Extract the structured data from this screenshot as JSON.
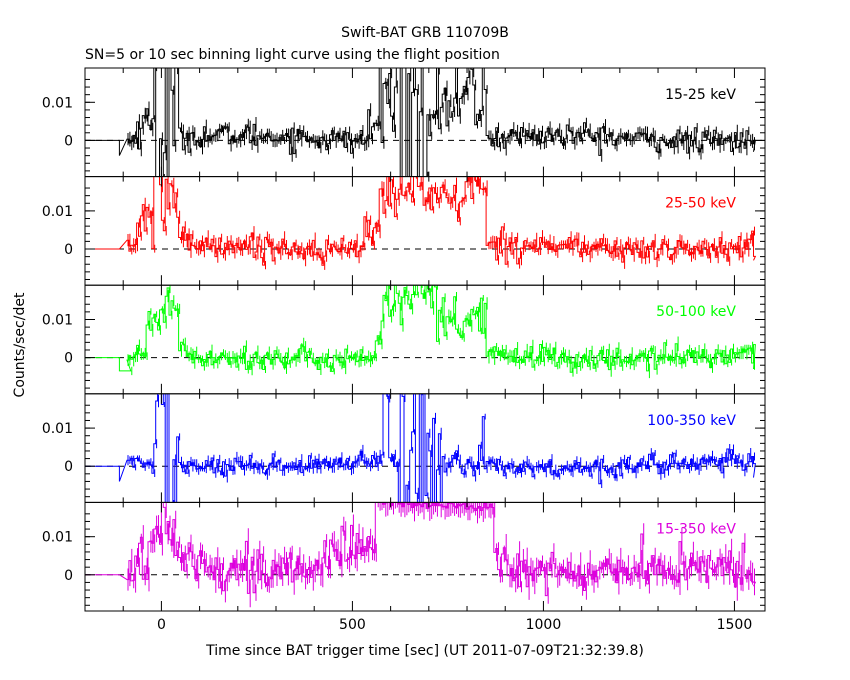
{
  "chart_data": {
    "type": "line",
    "title": "Swift-BAT GRB 110709B",
    "subtitle": "SN=5 or 10 sec binning light curve using the flight position",
    "xlabel": "Time since BAT trigger time [sec] (UT 2011-07-09T21:32:39.8)",
    "ylabel": "Counts/sec/det",
    "xlim": [
      -200,
      1580
    ],
    "ylim": [
      -0.0095,
      0.019
    ],
    "x_ticks": [
      0,
      500,
      1000,
      1500
    ],
    "x_tick_labels": [
      "0",
      "500",
      "1000",
      "1500"
    ],
    "y_ticks": [
      0,
      0.01
    ],
    "y_tick_labels": [
      "0",
      "0.01"
    ],
    "zero_line": "dashed",
    "grid": false,
    "panels": [
      {
        "name": "15-25 keV",
        "color": "#000000",
        "noise": 0.0016,
        "baseline": 0.0005,
        "episodes": [
          {
            "start": -70,
            "end": 0,
            "level": 0.0045,
            "noise": 0.003
          },
          {
            "start": -20,
            "end": 45,
            "level": 0.009,
            "noise": 0.02
          },
          {
            "start": 540,
            "end": 570,
            "level": 0.005,
            "noise": 0.003
          },
          {
            "start": 570,
            "end": 700,
            "level": 0.011,
            "noise": 0.02
          },
          {
            "start": 700,
            "end": 790,
            "level": 0.01,
            "noise": 0.004
          },
          {
            "start": 790,
            "end": 850,
            "level": 0.012,
            "noise": 0.006
          }
        ]
      },
      {
        "name": "25-50 keV",
        "color": "#ff0000",
        "noise": 0.0016,
        "baseline": 0.0005,
        "episodes": [
          {
            "start": -70,
            "end": -20,
            "level": 0.006,
            "noise": 0.004
          },
          {
            "start": -20,
            "end": 45,
            "level": 0.013,
            "noise": 0.007
          },
          {
            "start": 45,
            "end": 60,
            "level": 0.003,
            "noise": 0.002
          },
          {
            "start": 530,
            "end": 570,
            "level": 0.006,
            "noise": 0.002
          },
          {
            "start": 570,
            "end": 720,
            "level": 0.016,
            "noise": 0.004
          },
          {
            "start": 720,
            "end": 790,
            "level": 0.012,
            "noise": 0.003
          },
          {
            "start": 790,
            "end": 850,
            "level": 0.016,
            "noise": 0.003
          }
        ]
      },
      {
        "name": "50-100 keV",
        "color": "#00ff00",
        "noise": 0.0015,
        "baseline": 0.0003,
        "episodes": [
          {
            "start": -40,
            "end": -15,
            "level": 0.006,
            "noise": 0.004
          },
          {
            "start": -15,
            "end": 45,
            "level": 0.014,
            "noise": 0.006
          },
          {
            "start": 45,
            "end": 60,
            "level": 0.003,
            "noise": 0.002
          },
          {
            "start": 560,
            "end": 580,
            "level": 0.006,
            "noise": 0.002
          },
          {
            "start": 580,
            "end": 720,
            "level": 0.015,
            "noise": 0.004
          },
          {
            "start": 720,
            "end": 850,
            "level": 0.008,
            "noise": 0.004
          }
        ]
      },
      {
        "name": "100-350 keV",
        "color": "#0000ff",
        "noise": 0.0013,
        "baseline": 0.0003,
        "episodes": [
          {
            "start": -20,
            "end": 45,
            "level": 0.004,
            "noise": 0.02
          },
          {
            "start": 580,
            "end": 600,
            "level": 0.003,
            "noise": 0.015
          },
          {
            "start": 620,
            "end": 740,
            "level": 0.002,
            "noise": 0.02
          },
          {
            "start": 790,
            "end": 850,
            "level": 0.004,
            "noise": 0.006
          }
        ]
      },
      {
        "name": "15-350 keV",
        "color": "#dd00dd",
        "noise": 0.0028,
        "baseline": 0.001,
        "episodes": [
          {
            "start": -60,
            "end": -20,
            "level": 0.006,
            "noise": 0.004
          },
          {
            "start": -20,
            "end": 45,
            "level": 0.015,
            "noise": 0.005
          },
          {
            "start": 45,
            "end": 130,
            "level": 0.006,
            "noise": 0.003
          },
          {
            "start": 130,
            "end": 250,
            "level": 0.002,
            "noise": 0.003
          },
          {
            "start": 440,
            "end": 560,
            "level": 0.006,
            "noise": 0.003
          },
          {
            "start": 560,
            "end": 870,
            "level": 0.0185,
            "noise": 0.0006
          },
          {
            "start": 870,
            "end": 900,
            "level": 0.004,
            "noise": 0.003
          }
        ]
      }
    ]
  }
}
